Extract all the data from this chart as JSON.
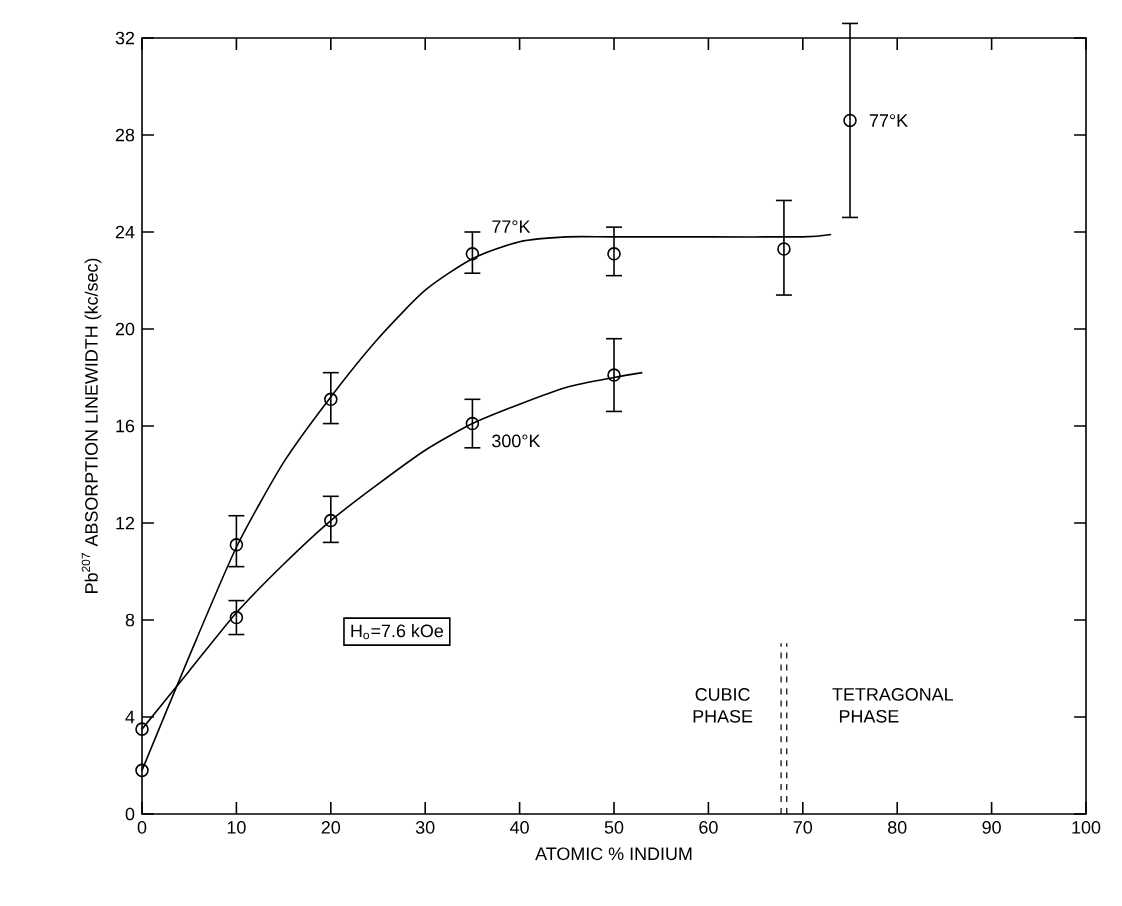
{
  "chart_data": {
    "type": "scatter",
    "xlabel": "ATOMIC % INDIUM",
    "ylabel": "Pb$^{207}$ ABSORPTION LINEWIDTH (kc/sec)",
    "xlim": [
      0,
      100
    ],
    "ylim": [
      0,
      32
    ],
    "xticks": [
      0,
      10,
      20,
      30,
      40,
      50,
      60,
      70,
      80,
      90,
      100
    ],
    "yticks": [
      0,
      4,
      8,
      12,
      16,
      20,
      24,
      28,
      32
    ],
    "marker": "circle",
    "series": [
      {
        "name": "77°K",
        "color": "#000000",
        "x": [
          0,
          10,
          20,
          35,
          50,
          68,
          75
        ],
        "values": [
          1.8,
          11.1,
          17.1,
          23.1,
          23.1,
          23.3,
          28.6
        ],
        "errors": [
          null,
          [
            10.2,
            12.3
          ],
          [
            16.1,
            18.2
          ],
          [
            22.3,
            24.0
          ],
          [
            22.2,
            24.2
          ],
          [
            21.4,
            25.3
          ],
          [
            24.6,
            32.6
          ]
        ]
      },
      {
        "name": "300°K",
        "color": "#000000",
        "x": [
          0,
          10,
          20,
          35,
          50
        ],
        "values": [
          3.5,
          8.1,
          12.1,
          16.1,
          18.1
        ],
        "errors": [
          null,
          [
            7.4,
            8.8
          ],
          [
            11.2,
            13.1
          ],
          [
            15.1,
            17.1
          ],
          [
            16.6,
            19.6
          ]
        ]
      },
      {
        "type": "line",
        "color": "#000000",
        "marker": "none",
        "x": [
          0,
          5,
          10,
          15,
          20,
          25,
          30,
          35,
          40,
          45,
          50,
          60,
          70,
          73
        ],
        "values": [
          1.8,
          6.5,
          11.0,
          14.5,
          17.2,
          19.6,
          21.6,
          22.9,
          23.6,
          23.8,
          23.8,
          23.8,
          23.8,
          23.9
        ]
      },
      {
        "type": "line",
        "color": "#000000",
        "marker": "none",
        "x": [
          0,
          5,
          10,
          15,
          20,
          25,
          30,
          35,
          40,
          45,
          50,
          53
        ],
        "values": [
          3.5,
          5.9,
          8.3,
          10.3,
          12.1,
          13.6,
          15.0,
          16.1,
          16.9,
          17.6,
          18.0,
          18.2
        ]
      }
    ],
    "ref_lines": [
      {
        "axis": "x",
        "value": 67.7,
        "line_style": "dashed",
        "color": "#000000"
      },
      {
        "axis": "x",
        "value": 68.3,
        "line_style": "dashed",
        "color": "#000000"
      }
    ],
    "annotations": [
      "H$_{o}$=7.6 kOe",
      "CUBIC PHASE",
      "TETRAGONAL PHASE",
      {
        "text": "77°K",
        "x": 75,
        "y": 28.6
      }
    ]
  }
}
